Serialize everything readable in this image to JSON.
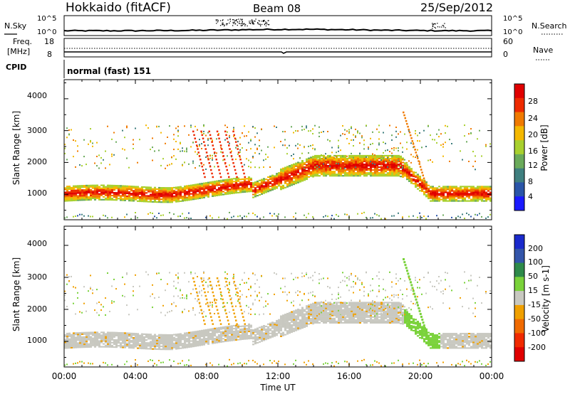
{
  "header": {
    "site": "Hokkaido (fitACF)",
    "beam": "Beam 08",
    "date": "25/Sep/2012"
  },
  "noise_panel": {
    "left_label": "N.Sky",
    "right_label": "N.Search",
    "left_ticks": [
      "10^5",
      "10^0"
    ],
    "right_ticks": [
      "10^5",
      "10^0"
    ]
  },
  "freq_panel": {
    "left_label_1": "Freq.",
    "left_label_2": "[MHz]",
    "right_label": "Nave",
    "left_ticks": [
      "18",
      "8"
    ],
    "right_ticks": [
      "60",
      "0"
    ]
  },
  "cpid_panel": {
    "label": "CPID",
    "text": "normal (fast) 151"
  },
  "x_axis": {
    "label": "Time UT",
    "ticks": [
      "00:00",
      "04:00",
      "08:00",
      "12:00",
      "16:00",
      "20:00",
      "00:00"
    ]
  },
  "chart_data": [
    {
      "type": "heatmap",
      "name": "power",
      "ylabel": "Slant Range [km]",
      "y_ticks": [
        "1000",
        "2000",
        "3000",
        "4000"
      ],
      "ylim": [
        200,
        4600
      ],
      "xlim_hours": [
        0,
        24
      ],
      "colorbar": {
        "label": "Power [dB]",
        "ticks": [
          "4",
          "8",
          "12",
          "16",
          "20",
          "24",
          "28"
        ],
        "range": [
          0,
          30
        ],
        "colors": [
          "#1a1aff",
          "#2a55a8",
          "#3f7f7f",
          "#6aaa5a",
          "#a8d02e",
          "#f4b800",
          "#f07a00",
          "#ee2a00",
          "#e00000"
        ]
      }
    },
    {
      "type": "heatmap",
      "name": "velocity",
      "ylabel": "Slant Range [km]",
      "y_ticks": [
        "1000",
        "2000",
        "3000",
        "4000"
      ],
      "ylim": [
        200,
        4600
      ],
      "xlim_hours": [
        0,
        24
      ],
      "colorbar": {
        "label": "Velocity [m s-1]",
        "ticks": [
          "200",
          "100",
          "50",
          "15",
          "-15",
          "-50",
          "-100",
          "-200"
        ],
        "colors": [
          "#1a2acc",
          "#3355aa",
          "#2e8a4a",
          "#7ad23a",
          "#c8c8c0",
          "#f0a000",
          "#f06a00",
          "#f02a00",
          "#e00000"
        ]
      }
    }
  ]
}
